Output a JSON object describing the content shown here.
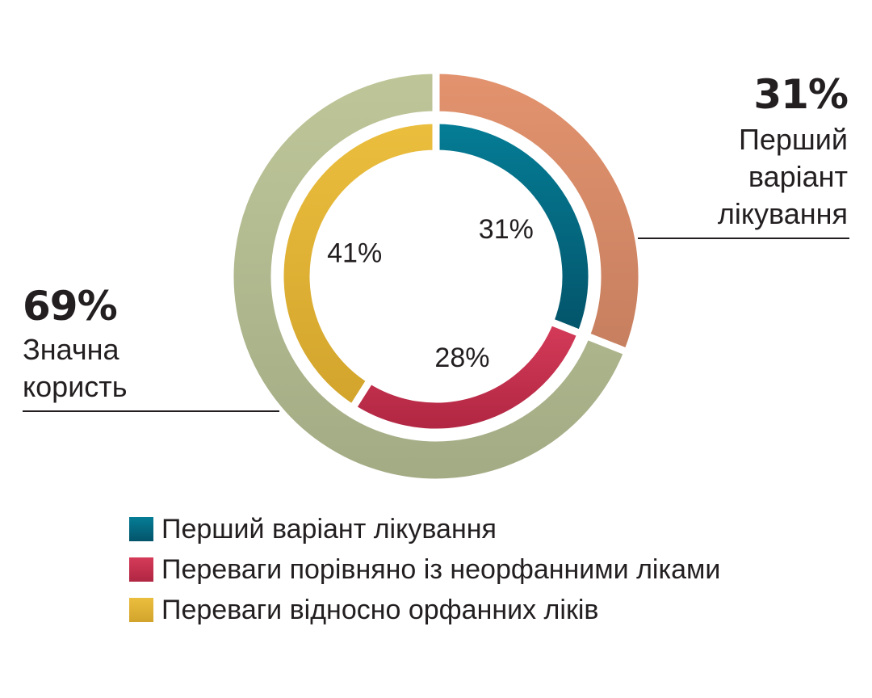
{
  "chart_data": {
    "type": "pie",
    "outer_ring": [
      {
        "value": 31,
        "label": "Перший варіант лікування",
        "percent_text": "31%",
        "color": "#d98d68"
      },
      {
        "value": 69,
        "label": "Значна користь",
        "percent_text": "69%",
        "color": "#b3bd92"
      }
    ],
    "inner_ring": [
      {
        "value": 31,
        "label": "31%",
        "color": "#0a6d86"
      },
      {
        "value": 28,
        "label": "28%",
        "color": "#c42f4e"
      },
      {
        "value": 41,
        "label": "41%",
        "color": "#e2b23a"
      }
    ],
    "legend": [
      {
        "label": "Перший варіант лікування",
        "color": "#0a6d86"
      },
      {
        "label": "Переваги порівняно із неорфанними ліками",
        "color": "#c42f4e"
      },
      {
        "label": "Переваги відносно орфанних ліків",
        "color": "#e2b23a"
      }
    ]
  },
  "callouts": {
    "right": {
      "percent": "31%",
      "lines": [
        "Перший",
        "варіант",
        "лікування"
      ]
    },
    "left": {
      "percent": "69%",
      "lines": [
        "Значна",
        "користь"
      ]
    }
  }
}
